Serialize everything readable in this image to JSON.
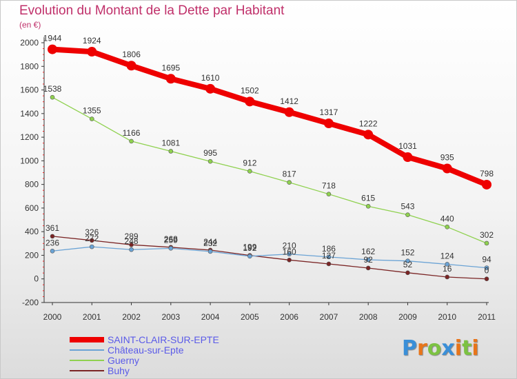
{
  "title": "Evolution du Montant de la Dette par Habitant",
  "subtitle": "(en €)",
  "logo": {
    "text": "Proxiti",
    "letter_colors": [
      "#3a8fd8",
      "#e8751a",
      "#7cc242",
      "#3a8fd8",
      "#e8751a",
      "#7cc242",
      "#e8751a"
    ]
  },
  "chart_data": {
    "type": "line",
    "categories": [
      "2000",
      "2001",
      "2002",
      "2003",
      "2004",
      "2005",
      "2006",
      "2007",
      "2008",
      "2009",
      "2010",
      "2011"
    ],
    "ylim": [
      -200,
      2000
    ],
    "yticks": [
      "-200",
      "0",
      "200",
      "400",
      "600",
      "800",
      "1000",
      "1200",
      "1400",
      "1600",
      "1800",
      "2000"
    ],
    "grid": false,
    "legend_position": "bottom-left",
    "series": [
      {
        "name": "SAINT-CLAIR-SUR-EPTE",
        "color": "#ee0000",
        "values": [
          1944,
          1924,
          1806,
          1695,
          1610,
          1502,
          1412,
          1317,
          1222,
          1031,
          935,
          798
        ],
        "labels": [
          "1944",
          "1924",
          "1806",
          "1695",
          "1610",
          "1502",
          "1412",
          "1317",
          "1222",
          "1031",
          "935",
          "798"
        ]
      },
      {
        "name": "Château-sur-Epte",
        "color": "#6aa3d5",
        "values": [
          236,
          272,
          248,
          259,
          232,
          192,
          210,
          186,
          162,
          152,
          124,
          94
        ],
        "labels": [
          "236",
          "272",
          "248",
          "259",
          "232",
          "192",
          "210",
          "186",
          "162",
          "152",
          "124",
          "94"
        ]
      },
      {
        "name": "Guerny",
        "color": "#8fd14f",
        "values": [
          1538,
          1355,
          1166,
          1081,
          995,
          912,
          817,
          718,
          615,
          543,
          440,
          302
        ],
        "labels": [
          "1538",
          "1355",
          "1166",
          "1081",
          "995",
          "912",
          "817",
          "718",
          "615",
          "543",
          "440",
          "302"
        ]
      },
      {
        "name": "Buhy",
        "color": "#7a2424",
        "values": [
          361,
          326,
          289,
          268,
          244,
          199,
          160,
          127,
          92,
          52,
          16,
          0
        ],
        "labels": [
          "361",
          "326",
          "289",
          "268",
          "244",
          "199",
          "160",
          "127",
          "92",
          "52",
          "16",
          "0"
        ]
      }
    ]
  }
}
